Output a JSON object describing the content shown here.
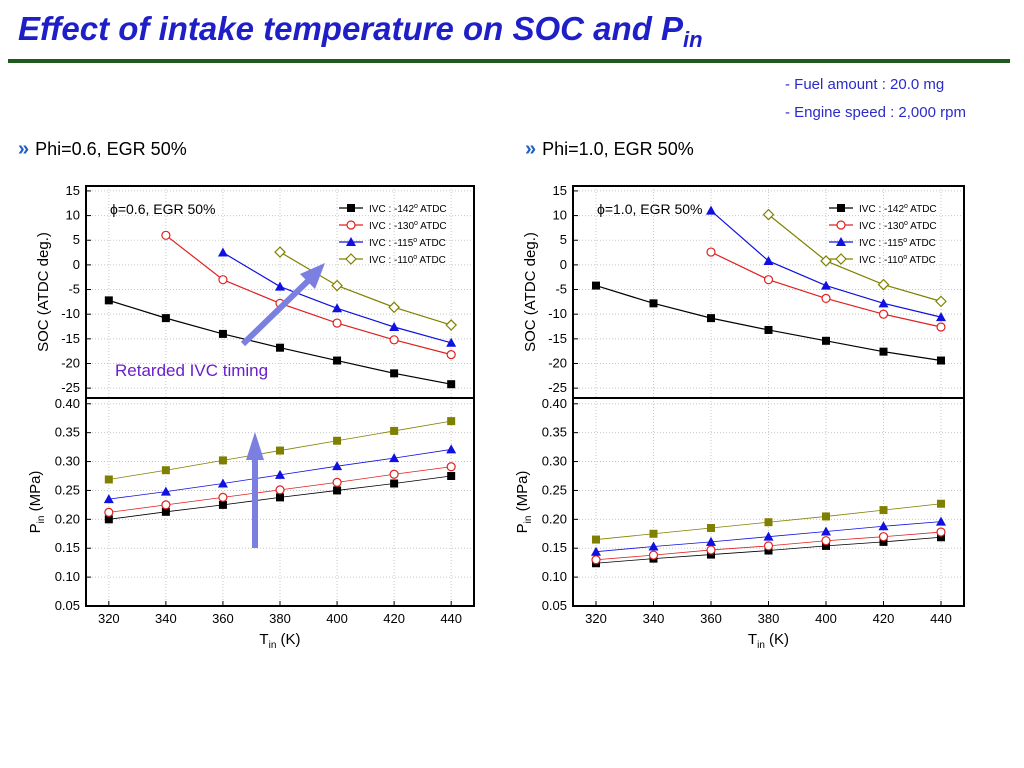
{
  "slide": {
    "title_main": "Effect of intake temperature on SOC and P",
    "title_sub": "in",
    "notes": [
      "- Fuel amount : 20.0 mg",
      "- Engine speed : 2,000 rpm"
    ],
    "panels": [
      "Phi=0.6, EGR 50%",
      "Phi=1.0, EGR 50%"
    ],
    "annotation": "Retarded IVC timing"
  },
  "colors": {
    "title": "#1f1fc8",
    "rule": "#1f5a1f",
    "arrow": "#7b7fe0",
    "annotation": "#6a1fc8",
    "series": [
      "#000000",
      "#e02020",
      "#1010e0",
      "#808000"
    ]
  },
  "chart_data": [
    {
      "type": "line",
      "title": "Phi=0.6, EGR 50%",
      "inset_label": "=0.6, EGR 50%",
      "inset_symbol": "ϕ",
      "x_tick_labels": [
        "320",
        "340",
        "360",
        "380",
        "400",
        "420",
        "440"
      ],
      "xlabel": "T",
      "xlabel_sub": "in",
      "xlabel_unit": "(K)",
      "xlim": [
        312,
        448
      ],
      "top": {
        "ylabel": "SOC (ATDC deg.)",
        "ylim": [
          -27,
          16
        ],
        "yticks": [
          15,
          10,
          5,
          0,
          -5,
          -10,
          -15,
          -20,
          -25
        ],
        "y_tick_labels": [
          "15",
          "10",
          "5",
          "0",
          "-5",
          "-10",
          "-15",
          "-20",
          "-25"
        ],
        "legend_position": "top-right",
        "series": [
          {
            "name": "IVC : -142",
            "name_suffix": "ATDC",
            "marker": "square-filled",
            "x": [
              320,
              340,
              360,
              380,
              400,
              420,
              440
            ],
            "values": [
              -7.2,
              -10.8,
              -14.0,
              -16.8,
              -19.4,
              -22.0,
              -24.2
            ]
          },
          {
            "name": "IVC : -130",
            "name_suffix": "ATDC",
            "marker": "circle-open",
            "x": [
              340,
              360,
              380,
              400,
              420,
              440
            ],
            "values": [
              6.0,
              -3.0,
              -7.8,
              -11.8,
              -15.2,
              -18.2
            ]
          },
          {
            "name": "IVC : -115",
            "name_suffix": "ATDC",
            "marker": "triangle-filled",
            "x": [
              360,
              380,
              400,
              420,
              440
            ],
            "values": [
              2.5,
              -4.4,
              -8.8,
              -12.6,
              -15.8
            ]
          },
          {
            "name": "IVC : -110",
            "name_suffix": "ATDC",
            "marker": "diamond-open",
            "x": [
              380,
              400,
              420,
              440
            ],
            "values": [
              2.6,
              -4.2,
              -8.6,
              -12.2
            ]
          }
        ]
      },
      "bottom": {
        "ylabel": "P",
        "ylabel_sub": "in",
        "ylabel_unit": "(MPa)",
        "ylim": [
          0.05,
          0.41
        ],
        "yticks": [
          0.4,
          0.35,
          0.3,
          0.25,
          0.2,
          0.15,
          0.1,
          0.05
        ],
        "y_tick_labels": [
          "0.40",
          "0.35",
          "0.30",
          "0.25",
          "0.20",
          "0.15",
          "0.10",
          "0.05"
        ],
        "series": [
          {
            "marker": "square-filled",
            "x": [
              320,
              340,
              360,
              380,
              400,
              420,
              440
            ],
            "values": [
              0.2,
              0.213,
              0.225,
              0.238,
              0.25,
              0.262,
              0.275
            ]
          },
          {
            "marker": "circle-open",
            "x": [
              320,
              340,
              360,
              380,
              400,
              420,
              440
            ],
            "values": [
              0.212,
              0.225,
              0.238,
              0.251,
              0.264,
              0.278,
              0.291
            ]
          },
          {
            "marker": "triangle-filled",
            "x": [
              320,
              340,
              360,
              380,
              400,
              420,
              440
            ],
            "values": [
              0.235,
              0.248,
              0.262,
              0.277,
              0.292,
              0.306,
              0.321
            ]
          },
          {
            "marker": "square-olive",
            "x": [
              320,
              340,
              360,
              380,
              400,
              420,
              440
            ],
            "values": [
              0.269,
              0.285,
              0.302,
              0.319,
              0.336,
              0.353,
              0.37
            ]
          }
        ]
      }
    },
    {
      "type": "line",
      "title": "Phi=1.0, EGR 50%",
      "inset_label": "=1.0, EGR 50%",
      "inset_symbol": "ϕ",
      "x_tick_labels": [
        "320",
        "340",
        "360",
        "380",
        "400",
        "420",
        "440"
      ],
      "xlabel": "T",
      "xlabel_sub": "in",
      "xlabel_unit": "(K)",
      "xlim": [
        312,
        448
      ],
      "top": {
        "ylabel": "SOC (ATDC deg.)",
        "ylim": [
          -27,
          16
        ],
        "yticks": [
          15,
          10,
          5,
          0,
          -5,
          -10,
          -15,
          -20,
          -25
        ],
        "y_tick_labels": [
          "15",
          "10",
          "5",
          "0",
          "-5",
          "-10",
          "-15",
          "-20",
          "-25"
        ],
        "legend_position": "top-right",
        "series": [
          {
            "name": "IVC : -142",
            "name_suffix": "ATDC",
            "marker": "square-filled",
            "x": [
              320,
              340,
              360,
              380,
              400,
              420,
              440
            ],
            "values": [
              -4.2,
              -7.8,
              -10.8,
              -13.2,
              -15.4,
              -17.6,
              -19.4
            ]
          },
          {
            "name": "IVC : -130",
            "name_suffix": "ATDC",
            "marker": "circle-open",
            "x": [
              360,
              380,
              400,
              420,
              440
            ],
            "values": [
              2.6,
              -3.0,
              -6.8,
              -10.0,
              -12.6
            ]
          },
          {
            "name": "IVC : -115",
            "name_suffix": "ATDC",
            "marker": "triangle-filled",
            "x": [
              360,
              380,
              400,
              420,
              440
            ],
            "values": [
              11.0,
              0.8,
              -4.2,
              -7.8,
              -10.6
            ]
          },
          {
            "name": "IVC : -110",
            "name_suffix": "ATDC",
            "marker": "diamond-open",
            "x": [
              380,
              400,
              420,
              440
            ],
            "values": [
              10.2,
              0.8,
              -4.0,
              -7.4
            ]
          }
        ]
      },
      "bottom": {
        "ylabel": "P",
        "ylabel_sub": "in",
        "ylabel_unit": "(MPa)",
        "ylim": [
          0.05,
          0.41
        ],
        "yticks": [
          0.4,
          0.35,
          0.3,
          0.25,
          0.2,
          0.15,
          0.1,
          0.05
        ],
        "y_tick_labels": [
          "0.40",
          "0.35",
          "0.30",
          "0.25",
          "0.20",
          "0.15",
          "0.10",
          "0.05"
        ],
        "series": [
          {
            "marker": "square-filled",
            "x": [
              320,
              340,
              360,
              380,
              400,
              420,
              440
            ],
            "values": [
              0.124,
              0.132,
              0.139,
              0.146,
              0.154,
              0.161,
              0.169
            ]
          },
          {
            "marker": "circle-open",
            "x": [
              320,
              340,
              360,
              380,
              400,
              420,
              440
            ],
            "values": [
              0.13,
              0.138,
              0.147,
              0.154,
              0.163,
              0.17,
              0.178
            ]
          },
          {
            "marker": "triangle-filled",
            "x": [
              320,
              340,
              360,
              380,
              400,
              420,
              440
            ],
            "values": [
              0.144,
              0.153,
              0.161,
              0.17,
              0.179,
              0.188,
              0.196
            ]
          },
          {
            "marker": "square-olive",
            "x": [
              320,
              340,
              360,
              380,
              400,
              420,
              440
            ],
            "values": [
              0.165,
              0.175,
              0.185,
              0.195,
              0.205,
              0.216,
              0.227
            ]
          }
        ]
      }
    }
  ]
}
